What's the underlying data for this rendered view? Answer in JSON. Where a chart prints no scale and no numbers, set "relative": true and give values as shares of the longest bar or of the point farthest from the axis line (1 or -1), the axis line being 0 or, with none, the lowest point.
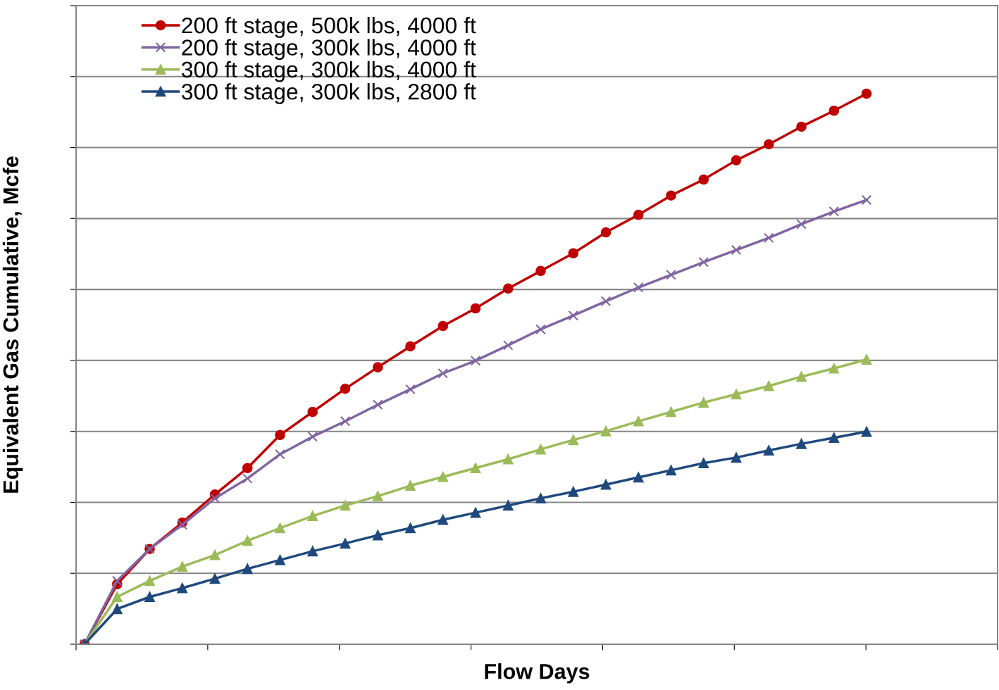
{
  "chart_data": {
    "type": "line",
    "xlabel": "Flow Days",
    "ylabel": "Equivalent Gas Cumulative, Mcfe",
    "relative": true,
    "grid": "y",
    "legend": "top left",
    "categories": [
      null,
      null,
      null,
      null,
      null,
      null,
      null,
      null,
      null,
      null,
      null,
      null,
      null,
      null,
      null,
      null,
      null,
      null,
      null,
      null,
      null,
      null,
      null,
      null,
      null
    ],
    "series": [
      {
        "name": "200 ft stage, 500k lbs, 4000 ft",
        "color": "#c00000",
        "marker": "circle",
        "values": [
          0,
          0.109,
          0.173,
          0.221,
          0.272,
          0.32,
          0.38,
          0.422,
          0.464,
          0.503,
          0.541,
          0.578,
          0.61,
          0.646,
          0.678,
          0.71,
          0.748,
          0.78,
          0.815,
          0.844,
          0.879,
          0.908,
          0.94,
          0.969,
          1
        ]
      },
      {
        "name": "200 ft stage, 300k lbs, 4000 ft",
        "color": "#8064a2",
        "marker": "cross",
        "values": [
          0,
          0.115,
          0.173,
          0.217,
          0.265,
          0.301,
          0.345,
          0.377,
          0.405,
          0.435,
          0.463,
          0.492,
          0.515,
          0.543,
          0.572,
          0.597,
          0.623,
          0.648,
          0.671,
          0.694,
          0.716,
          0.738,
          0.763,
          0.786,
          0.807
        ]
      },
      {
        "name": "300 ft stage, 300k lbs, 4000 ft",
        "color": "#9bbb59",
        "marker": "triangle",
        "values": [
          0,
          0.086,
          0.115,
          0.141,
          0.162,
          0.188,
          0.211,
          0.233,
          0.252,
          0.269,
          0.288,
          0.304,
          0.32,
          0.336,
          0.354,
          0.371,
          0.387,
          0.405,
          0.422,
          0.439,
          0.454,
          0.469,
          0.486,
          0.501,
          0.517
        ]
      },
      {
        "name": "300 ft stage, 300k lbs, 2800 ft",
        "color": "#1f497d",
        "marker": "triangle",
        "values": [
          0,
          0.064,
          0.086,
          0.102,
          0.119,
          0.137,
          0.153,
          0.169,
          0.183,
          0.198,
          0.211,
          0.226,
          0.239,
          0.252,
          0.265,
          0.277,
          0.29,
          0.303,
          0.316,
          0.329,
          0.339,
          0.352,
          0.364,
          0.375,
          0.386
        ]
      }
    ]
  }
}
